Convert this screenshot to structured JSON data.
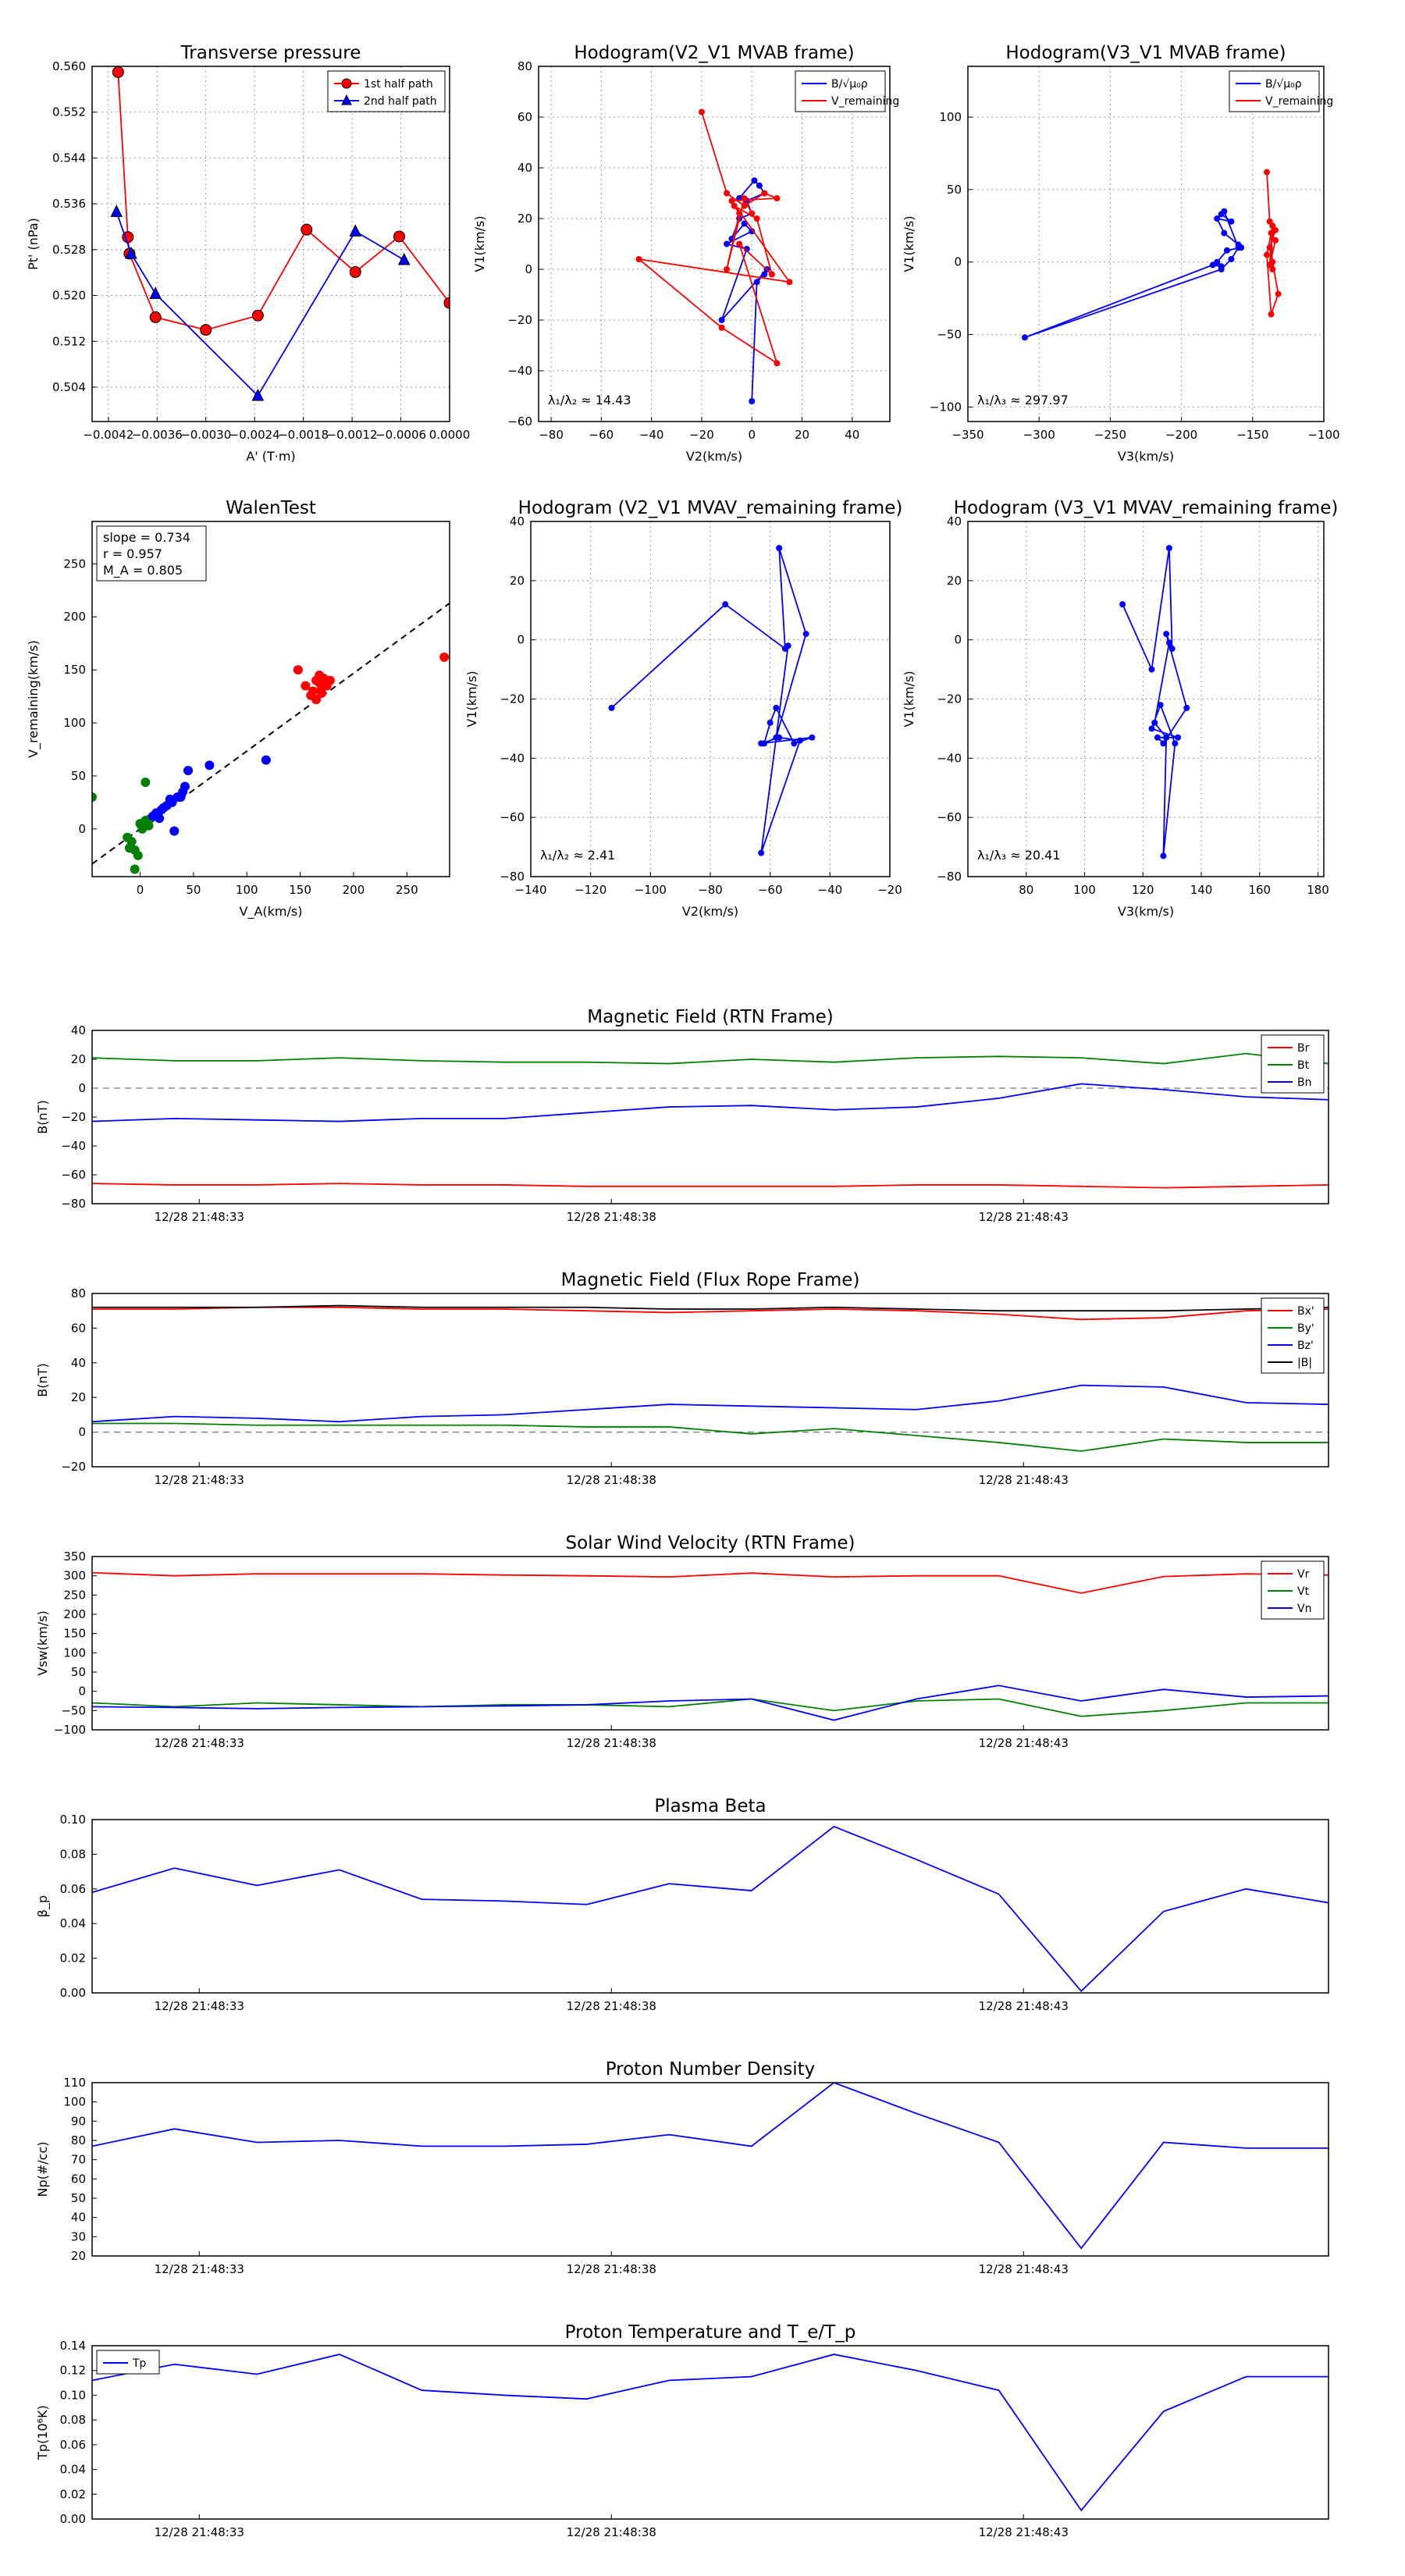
{
  "chart_data": [
    {
      "id": "tp",
      "type": "scatter",
      "title": "Transverse pressure",
      "xlabel": "A' (T·m)",
      "ylabel": "Pt' (nPa)",
      "xlim": [
        -0.0044,
        0.0
      ],
      "ylim": [
        0.498,
        0.56
      ],
      "xticks": [
        -0.0042,
        -0.0036,
        -0.003,
        -0.0024,
        -0.0018,
        -0.0012,
        -0.0006,
        0.0
      ],
      "xtick_labels": [
        "−0.0042",
        "−0.0036",
        "−0.0030",
        "−0.0024",
        "−0.0018",
        "−0.0012",
        "−0.0006",
        "0.0000"
      ],
      "yticks": [
        0.504,
        0.512,
        0.52,
        0.528,
        0.536,
        0.544,
        0.552,
        0.56
      ],
      "ytick_labels": [
        "0.504",
        "0.512",
        "0.520",
        "0.528",
        "0.536",
        "0.544",
        "0.552",
        "0.560"
      ],
      "series": [
        {
          "name": "1st half path",
          "color": "#ff0000",
          "marker": "circle",
          "x": [
            -0.00408,
            -0.00396,
            -0.00394,
            -0.00362,
            -0.003,
            -0.00236,
            -0.00176,
            -0.00116,
            -0.00062,
            0.0
          ],
          "y": [
            0.559,
            0.5302,
            0.5273,
            0.5162,
            0.514,
            0.5165,
            0.5315,
            0.5241,
            0.5303,
            0.5187
          ]
        },
        {
          "name": "2nd half path",
          "color": "#0000ff",
          "marker": "triangle",
          "x": [
            -0.0041,
            -0.00392,
            -0.00362,
            -0.00236,
            -0.00116,
            -0.00056
          ],
          "y": [
            0.5346,
            0.5273,
            0.5203,
            0.5025,
            0.5312,
            0.5262
          ]
        }
      ]
    },
    {
      "id": "h1",
      "type": "line",
      "title": "Hodogram(V2_V1 MVAB frame)",
      "xlabel": "V2(km/s)",
      "ylabel": "V1(km/s)",
      "xlim": [
        -85,
        55
      ],
      "ylim": [
        -60,
        80
      ],
      "xticks": [
        -80,
        -60,
        -40,
        -20,
        0,
        20,
        40
      ],
      "yticks": [
        -60,
        -40,
        -20,
        0,
        20,
        40,
        60,
        80
      ],
      "annotation": "λ₁/λ₂ ≈ 14.43",
      "series": [
        {
          "name": "B/√μ₀ρ",
          "color": "#0000ff",
          "x": [
            -5,
            1,
            3,
            5,
            -2,
            0,
            -5,
            -8,
            -3,
            0,
            -10,
            -2,
            -12,
            6,
            5,
            2,
            0
          ],
          "y": [
            28,
            35,
            33,
            30,
            27,
            22,
            20,
            12,
            18,
            15,
            10,
            8,
            -20,
            0,
            -2,
            -5,
            -52
          ],
          "marker": true
        },
        {
          "name": "V_remaining",
          "color": "#ff0000",
          "x": [
            -20,
            -10,
            -3,
            5,
            10,
            -8,
            15,
            -45,
            -12,
            10,
            -5,
            8,
            2,
            -7,
            -5,
            -10,
            -3,
            0
          ],
          "y": [
            62,
            30,
            25,
            30,
            28,
            27,
            -5,
            4,
            -23,
            -37,
            10,
            -2,
            20,
            25,
            22,
            0,
            28,
            22
          ],
          "marker": true
        }
      ]
    },
    {
      "id": "h2",
      "type": "line",
      "title": "Hodogram(V3_V1 MVAB frame)",
      "xlabel": "V3(km/s)",
      "ylabel": "V1(km/s)",
      "xlim": [
        -350,
        -100
      ],
      "ylim": [
        -110,
        135
      ],
      "xticks": [
        -350,
        -300,
        -250,
        -200,
        -150,
        -100
      ],
      "yticks": [
        -100,
        -50,
        0,
        50,
        100
      ],
      "annotation": "λ₁/λ₃ ≈ 297.97",
      "series": [
        {
          "name": "B/√μ₀ρ",
          "color": "#0000ff",
          "x": [
            -172,
            -165,
            -175,
            -170,
            -160,
            -158,
            -168,
            -175,
            -172,
            -178,
            -310,
            -172,
            -165,
            -160,
            -170
          ],
          "y": [
            33,
            28,
            30,
            20,
            12,
            10,
            8,
            0,
            -3,
            -2,
            -52,
            -5,
            2,
            10,
            35
          ],
          "marker": true
        },
        {
          "name": "V_remaining",
          "color": "#ff0000",
          "x": [
            -140,
            -138,
            -134,
            -138,
            -136,
            -132,
            -137,
            -140,
            -136,
            -138,
            -134,
            -137,
            -136
          ],
          "y": [
            62,
            28,
            22,
            10,
            0,
            -22,
            -36,
            5,
            25,
            -2,
            15,
            20,
            -5
          ],
          "marker": true
        }
      ]
    },
    {
      "id": "walen",
      "type": "scatter",
      "title": "WalenTest",
      "xlabel": "V_A(km/s)",
      "ylabel": "V_remaining(km/s)",
      "xlim": [
        -45,
        290
      ],
      "ylim": [
        -45,
        290
      ],
      "xticks": [
        0,
        50,
        100,
        150,
        200,
        250
      ],
      "yticks": [
        0,
        50,
        100,
        150,
        200,
        250
      ],
      "stats": [
        "slope = 0.734",
        "r = 0.957",
        "M_A = 0.805"
      ],
      "fit_line": {
        "slope": 0.734,
        "intercept": 0
      },
      "series": [
        {
          "name": "red",
          "color": "#ff0000",
          "x": [
            148,
            155,
            162,
            165,
            168,
            170,
            172,
            175,
            178,
            170,
            165,
            160,
            285,
            172,
            168
          ],
          "y": [
            150,
            135,
            130,
            140,
            138,
            128,
            142,
            135,
            140,
            132,
            122,
            126,
            162,
            138,
            145
          ]
        },
        {
          "name": "green",
          "color": "#008000",
          "x": [
            -45,
            -12,
            -8,
            -5,
            -2,
            0,
            2,
            5,
            8,
            10,
            5,
            -10,
            -5,
            3
          ],
          "y": [
            30,
            -8,
            -12,
            -20,
            -25,
            5,
            0,
            8,
            3,
            10,
            44,
            -18,
            -38,
            2
          ]
        },
        {
          "name": "blue",
          "color": "#0000ff",
          "x": [
            15,
            20,
            25,
            30,
            35,
            40,
            42,
            45,
            65,
            118,
            32,
            12,
            18,
            22,
            28,
            38
          ],
          "y": [
            15,
            18,
            22,
            25,
            30,
            35,
            40,
            55,
            60,
            65,
            -2,
            12,
            10,
            20,
            28,
            30
          ]
        }
      ]
    },
    {
      "id": "h3",
      "type": "line",
      "title": "Hodogram (V2_V1 MVAV_remaining frame)",
      "xlabel": "V2(km/s)",
      "ylabel": "V1(km/s)",
      "xlim": [
        -140,
        -20
      ],
      "ylim": [
        -80,
        40
      ],
      "xticks": [
        -140,
        -120,
        -100,
        -80,
        -60,
        -40,
        -20
      ],
      "yticks": [
        -80,
        -60,
        -40,
        -20,
        0,
        20,
        40
      ],
      "annotation": "λ₁/λ₂ ≈ 2.41",
      "series": [
        {
          "name": "V",
          "color": "#0000ff",
          "x": [
            -113,
            -75,
            -55,
            -57,
            -48,
            -58,
            -62,
            -60,
            -58,
            -52,
            -46,
            -63,
            -57,
            -50,
            -63,
            -54
          ],
          "y": [
            -23,
            12,
            -3,
            31,
            2,
            -33,
            -35,
            -28,
            -23,
            -35,
            -33,
            -35,
            -33,
            -34,
            -72,
            -2
          ],
          "marker": true
        }
      ]
    },
    {
      "id": "h4",
      "type": "line",
      "title": "Hodogram (V3_V1 MVAV_remaining frame)",
      "xlabel": "V3(km/s)",
      "ylabel": "V1(km/s)",
      "xlim": [
        60,
        182
      ],
      "ylim": [
        -80,
        40
      ],
      "xticks": [
        80,
        100,
        120,
        140,
        160,
        180
      ],
      "yticks": [
        -80,
        -60,
        -40,
        -20,
        0,
        20,
        40
      ],
      "annotation": "λ₁/λ₃ ≈ 20.41",
      "series": [
        {
          "name": "V",
          "color": "#0000ff",
          "x": [
            113,
            123,
            129,
            130,
            128,
            135,
            127,
            125,
            132,
            123,
            126,
            131,
            127,
            128,
            124,
            129
          ],
          "y": [
            12,
            -10,
            31,
            -3,
            2,
            -23,
            -35,
            -33,
            -33,
            -30,
            -22,
            -35,
            -73,
            -33,
            -28,
            -1
          ],
          "marker": true
        }
      ]
    },
    {
      "id": "ts1",
      "type": "line",
      "title": "Magnetic Field (RTN Frame)",
      "ylabel": "B(nT)",
      "ylim": [
        -80,
        40
      ],
      "yticks": [
        -80,
        -60,
        -40,
        -20,
        0,
        20,
        40
      ],
      "zero_line": true,
      "legend": "right",
      "x_ticks": [
        "12/28 21:48:33",
        "12/28 21:48:38",
        "12/28 21:48:43"
      ],
      "series": [
        {
          "name": "Br",
          "color": "#ff0000",
          "values": [
            -66,
            -67,
            -67,
            -66,
            -67,
            -67,
            -68,
            -68,
            -68,
            -68,
            -67,
            -67,
            -68,
            -69,
            -68,
            -67
          ]
        },
        {
          "name": "Bt",
          "color": "#008000",
          "values": [
            21,
            19,
            19,
            21,
            19,
            18,
            18,
            17,
            20,
            18,
            21,
            22,
            21,
            17,
            24,
            17
          ]
        },
        {
          "name": "Bn",
          "color": "#0000ff",
          "values": [
            -23,
            -21,
            -22,
            -23,
            -21,
            -21,
            -17,
            -13,
            -12,
            -15,
            -13,
            -7,
            3,
            -1,
            -6,
            -8
          ]
        }
      ]
    },
    {
      "id": "ts2",
      "type": "line",
      "title": "Magnetic Field (Flux Rope Frame)",
      "ylabel": "B(nT)",
      "ylim": [
        -20,
        80
      ],
      "yticks": [
        -20,
        0,
        20,
        40,
        60,
        80
      ],
      "zero_line": true,
      "legend": "right",
      "x_ticks": [
        "12/28 21:48:33",
        "12/28 21:48:38",
        "12/28 21:48:43"
      ],
      "series": [
        {
          "name": "Bx'",
          "color": "#ff0000",
          "values": [
            71,
            71,
            72,
            72,
            71,
            71,
            70,
            69,
            70,
            71,
            70,
            68,
            65,
            66,
            70,
            71
          ]
        },
        {
          "name": "By'",
          "color": "#008000",
          "values": [
            5,
            5,
            4,
            4,
            4,
            4,
            3,
            3,
            -1,
            2,
            -2,
            -6,
            -11,
            -4,
            -6,
            -6
          ]
        },
        {
          "name": "Bz'",
          "color": "#0000ff",
          "values": [
            6,
            9,
            8,
            6,
            9,
            10,
            13,
            16,
            15,
            14,
            13,
            18,
            27,
            26,
            17,
            16
          ]
        },
        {
          "name": "|B|",
          "color": "#000000",
          "values": [
            72,
            72,
            72,
            73,
            72,
            72,
            72,
            71,
            71,
            72,
            71,
            70,
            70,
            70,
            71,
            72
          ]
        }
      ]
    },
    {
      "id": "ts3",
      "type": "line",
      "title": "Solar Wind Velocity (RTN Frame)",
      "ylabel": "Vsw(km/s)",
      "ylim": [
        -100,
        350
      ],
      "yticks": [
        -100,
        -50,
        0,
        50,
        100,
        150,
        200,
        250,
        300,
        350
      ],
      "legend": "right",
      "x_ticks": [
        "12/28 21:48:33",
        "12/28 21:48:38",
        "12/28 21:48:43"
      ],
      "series": [
        {
          "name": "Vr",
          "color": "#ff0000",
          "values": [
            308,
            300,
            305,
            305,
            305,
            302,
            300,
            297,
            307,
            297,
            300,
            300,
            255,
            298,
            305,
            302
          ]
        },
        {
          "name": "Vt",
          "color": "#008000",
          "values": [
            -30,
            -40,
            -30,
            -35,
            -40,
            -35,
            -35,
            -40,
            -20,
            -50,
            -25,
            -20,
            -65,
            -50,
            -30,
            -30
          ]
        },
        {
          "name": "Vn",
          "color": "#0000ff",
          "values": [
            -40,
            -42,
            -45,
            -42,
            -40,
            -38,
            -35,
            -25,
            -20,
            -75,
            -20,
            15,
            -25,
            5,
            -15,
            -12
          ]
        }
      ]
    },
    {
      "id": "ts4",
      "type": "line",
      "title": "Plasma Beta",
      "ylabel": "β_p",
      "ylim": [
        0,
        0.1
      ],
      "yticks": [
        0,
        0.02,
        0.04,
        0.06,
        0.08,
        0.1
      ],
      "ytick_labels": [
        "0.00",
        "0.02",
        "0.04",
        "0.06",
        "0.08",
        "0.10"
      ],
      "x_ticks": [
        "12/28 21:48:33",
        "12/28 21:48:38",
        "12/28 21:48:43"
      ],
      "series": [
        {
          "name": "beta",
          "color": "#0000ff",
          "values": [
            0.058,
            0.072,
            0.062,
            0.071,
            0.054,
            0.053,
            0.051,
            0.063,
            0.059,
            0.096,
            0.077,
            0.057,
            0.001,
            0.047,
            0.06,
            0.052
          ]
        }
      ]
    },
    {
      "id": "ts5",
      "type": "line",
      "title": "Proton Number Density",
      "ylabel": "Np(#/cc)",
      "ylim": [
        20,
        110
      ],
      "yticks": [
        20,
        30,
        40,
        50,
        60,
        70,
        80,
        90,
        100,
        110
      ],
      "x_ticks": [
        "12/28 21:48:33",
        "12/28 21:48:38",
        "12/28 21:48:43"
      ],
      "series": [
        {
          "name": "Np",
          "color": "#0000ff",
          "values": [
            77,
            86,
            79,
            80,
            77,
            77,
            78,
            83,
            77,
            110,
            94,
            79,
            24,
            79,
            76,
            76
          ]
        }
      ]
    },
    {
      "id": "ts6",
      "type": "line",
      "title": "Proton Temperature and T_e/T_p",
      "ylabel": "Tp(10⁶K)",
      "ylim": [
        0,
        0.14
      ],
      "yticks": [
        0,
        0.02,
        0.04,
        0.06,
        0.08,
        0.1,
        0.12,
        0.14
      ],
      "ytick_labels": [
        "0.00",
        "0.02",
        "0.04",
        "0.06",
        "0.08",
        "0.10",
        "0.12",
        "0.14"
      ],
      "legend": "left",
      "x_ticks": [
        "12/28 21:48:33",
        "12/28 21:48:38",
        "12/28 21:48:43"
      ],
      "series": [
        {
          "name": "Tp",
          "color": "#0000ff",
          "values": [
            0.112,
            0.125,
            0.117,
            0.133,
            0.104,
            0.1,
            0.097,
            0.112,
            0.115,
            0.133,
            0.12,
            0.104,
            0.007,
            0.087,
            0.115,
            0.115
          ]
        }
      ]
    }
  ]
}
